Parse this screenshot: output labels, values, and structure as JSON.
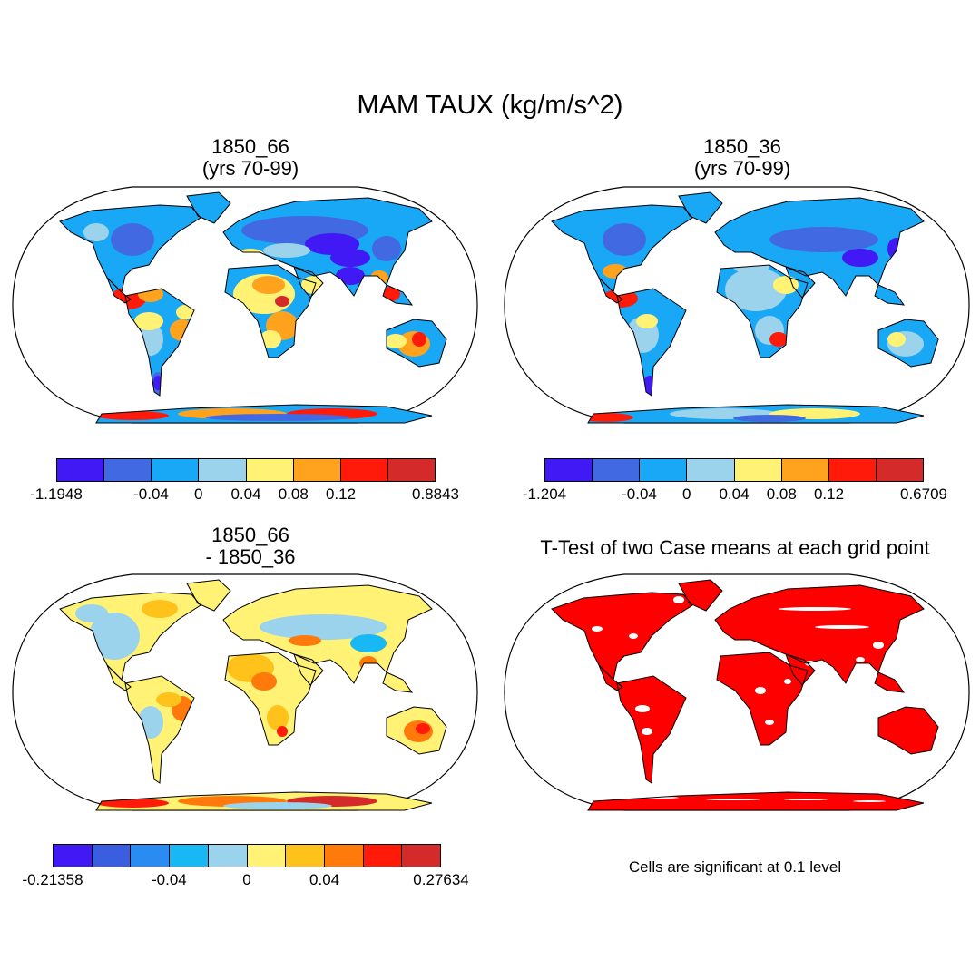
{
  "figure": {
    "title": "MAM TAUX (kg/m/s^2)"
  },
  "panels": {
    "p1": {
      "title_line1": "1850_66",
      "title_line2": "(yrs 70-99)"
    },
    "p2": {
      "title_line1": "1850_36",
      "title_line2": "(yrs 70-99)"
    },
    "p3": {
      "title_line1": "1850_66",
      "title_line2": "- 1850_36"
    },
    "p4": {
      "title": "T-Test of two Case means at each grid point",
      "note": "Cells are significant at 0.1 level"
    }
  },
  "colorbars": {
    "cb1": {
      "colors": [
        "#4019f5",
        "#4169e1",
        "#18a8f5",
        "#9bd2ec",
        "#fff275",
        "#ffa21e",
        "#ff1a0a",
        "#d42a2a"
      ],
      "labels": [
        "-1.1948",
        "-0.04",
        "0",
        "0.04",
        "0.08",
        "0.12",
        "0.8843"
      ],
      "positions": [
        0,
        2,
        3,
        4,
        5,
        6,
        8
      ]
    },
    "cb2": {
      "colors": [
        "#4019f5",
        "#4169e1",
        "#18a8f5",
        "#9bd2ec",
        "#fff275",
        "#ffa21e",
        "#ff1a0a",
        "#d42a2a"
      ],
      "labels": [
        "-1.204",
        "-0.04",
        "0",
        "0.04",
        "0.08",
        "0.12",
        "0.6709"
      ],
      "positions": [
        0,
        2,
        3,
        4,
        5,
        6,
        8
      ]
    },
    "cb3": {
      "colors": [
        "#4019f5",
        "#3a5ee0",
        "#2a8cf0",
        "#18b8f5",
        "#9bd2ec",
        "#fff275",
        "#ffc21a",
        "#ff7a0a",
        "#ff1a0a",
        "#d42a2a"
      ],
      "labels": [
        "-0.21358",
        "-0.04",
        "0",
        "0.04",
        "0.27634"
      ],
      "positions": [
        0,
        3,
        5,
        7,
        10
      ]
    }
  },
  "map_colors": {
    "p1": {
      "land": "#18a8f5",
      "accents": [
        "#4169e1",
        "#9bd2ec",
        "#fff275",
        "#ffa21e",
        "#ff1a0a",
        "#d42a2a",
        "#4019f5"
      ]
    },
    "p2": {
      "land": "#18a8f5",
      "accents": [
        "#9bd2ec",
        "#4169e1",
        "#fff275",
        "#ff1a0a",
        "#4019f5"
      ]
    },
    "p3": {
      "land": "#fff275",
      "accents": [
        "#9bd2ec",
        "#ffc21a",
        "#ff7a0a",
        "#18b8f5",
        "#ff1a0a",
        "#d42a2a"
      ]
    },
    "p4": {
      "land": "#ff0000",
      "accents": [
        "#ffffff"
      ]
    }
  }
}
